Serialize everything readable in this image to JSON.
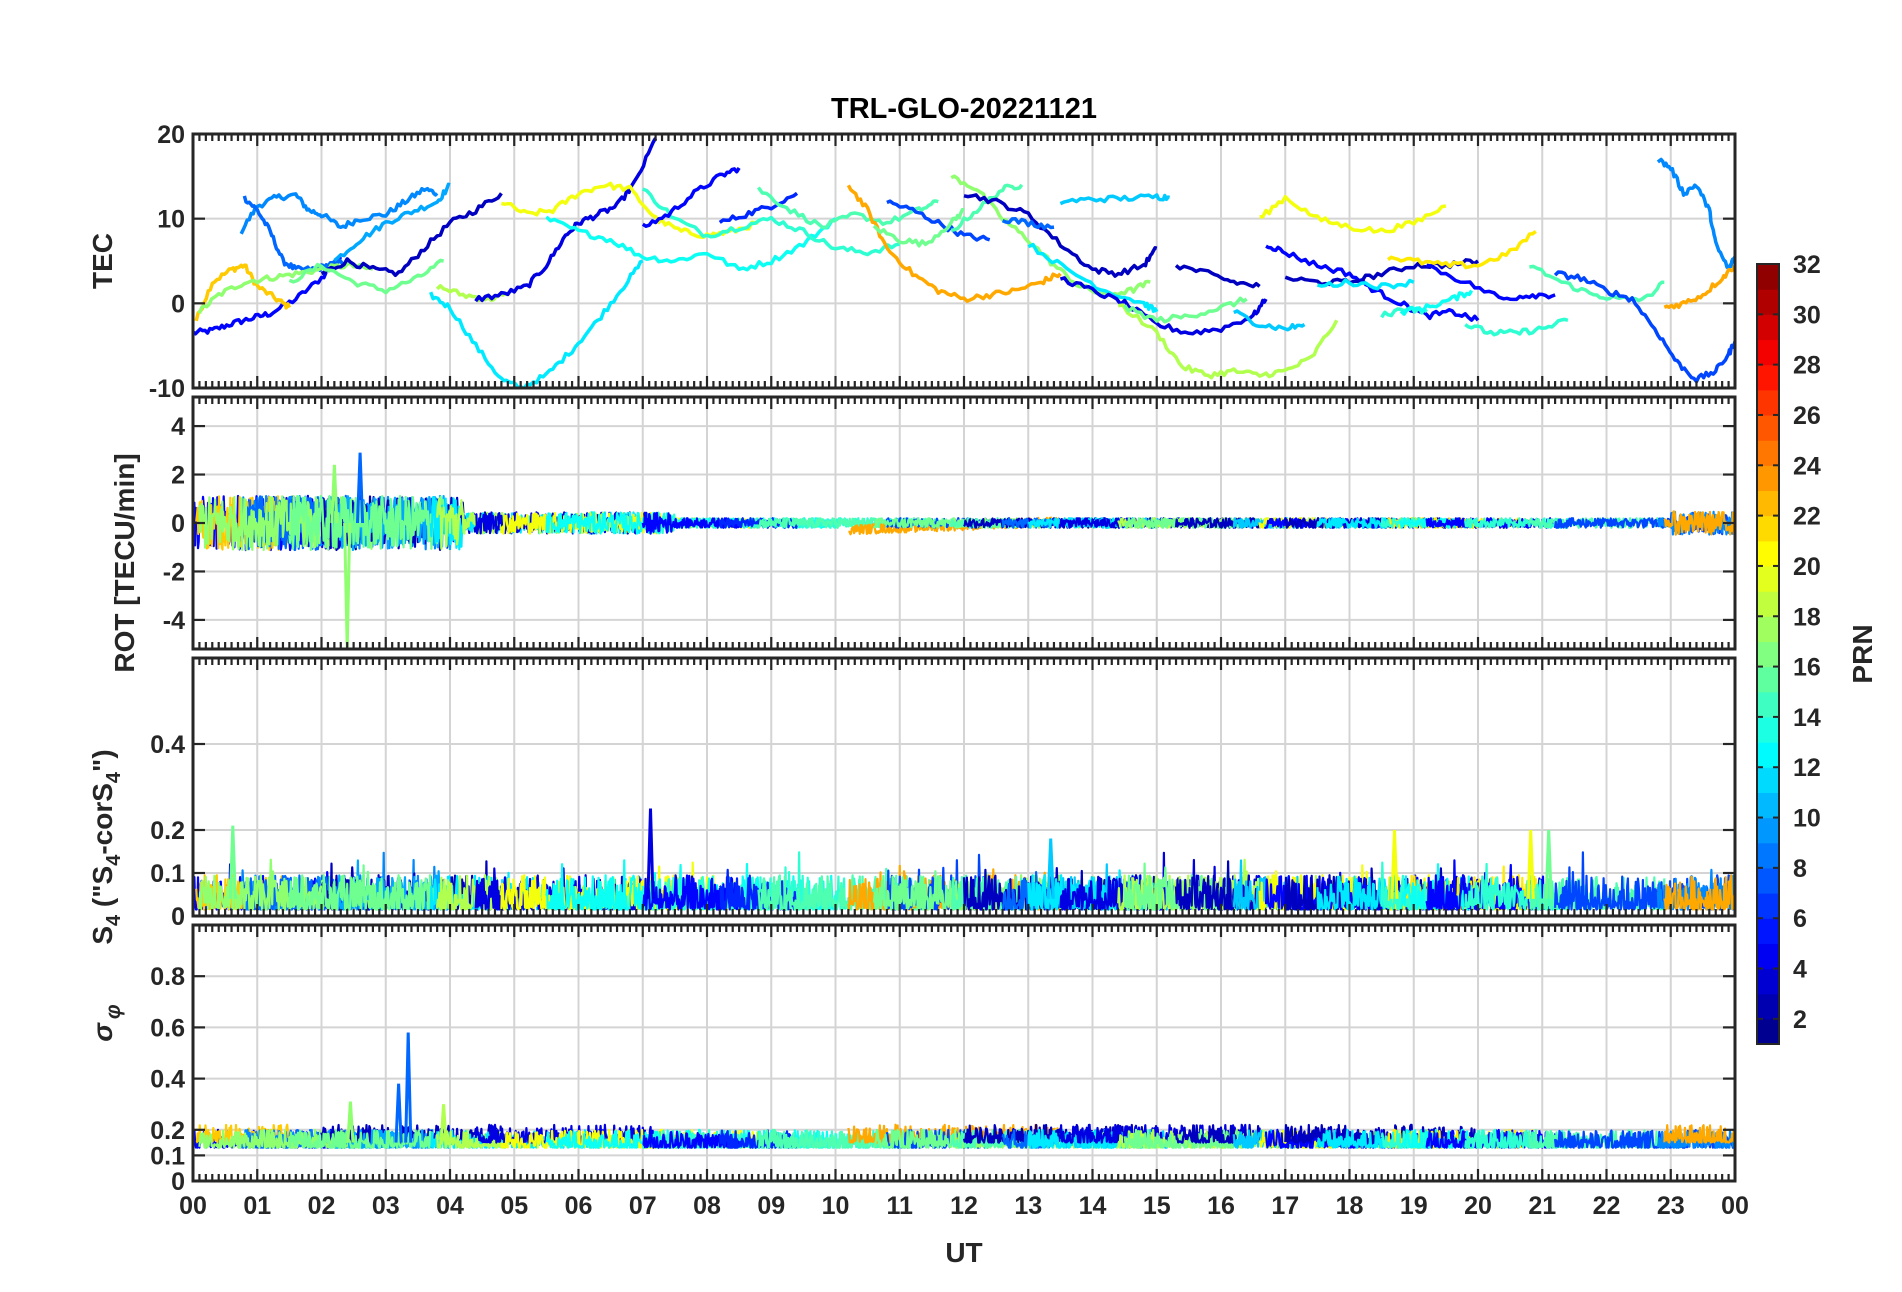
{
  "chart_data": [
    {
      "type": "line",
      "title": "TRL-GLO-20221121",
      "ylabel": "TEC",
      "xlabel": "",
      "xlim": [
        0,
        24
      ],
      "ylim": [
        -10,
        20
      ],
      "yticks": [
        -10,
        0,
        10,
        20
      ],
      "grid": true,
      "series": [
        {
          "prn": 5,
          "x": [
            0.0,
            0.3,
            0.6,
            0.9,
            1.2,
            1.6,
            2.0,
            2.3
          ],
          "y": [
            -3.5,
            -3.2,
            -2.4,
            -1.8,
            -1.2,
            0.5,
            3.0,
            5.5
          ]
        },
        {
          "prn": 22,
          "x": [
            0.05,
            0.3,
            0.6,
            0.8,
            1.0,
            1.3,
            1.5
          ],
          "y": [
            -2,
            2.5,
            4.0,
            4.5,
            2.0,
            0.5,
            -0.5
          ]
        },
        {
          "prn": 9,
          "x": [
            0.75,
            1.0,
            1.3,
            1.6,
            1.8,
            2.0,
            2.3,
            2.6,
            3.0,
            3.3,
            3.6,
            3.8
          ],
          "y": [
            8.5,
            11.5,
            12.5,
            12.8,
            11.0,
            10.5,
            9.0,
            10.0,
            10.5,
            12.0,
            13.5,
            13.0
          ]
        },
        {
          "prn": 8,
          "x": [
            0.8,
            1.0,
            1.2,
            1.4,
            1.6,
            1.9,
            2.1,
            2.4
          ],
          "y": [
            12.5,
            11.0,
            8.5,
            5.0,
            4.0,
            4.0,
            4.5,
            5.0
          ]
        },
        {
          "prn": 17,
          "x": [
            0.1,
            0.4,
            0.8,
            1.2,
            1.6,
            2.0,
            2.4,
            2.8
          ],
          "y": [
            -1.0,
            1.0,
            2.5,
            3.0,
            3.5,
            4.0,
            4.5,
            4.0
          ]
        },
        {
          "prn": 3,
          "x": [
            2.0,
            2.4,
            2.8,
            3.2,
            3.6,
            4.0,
            4.4,
            4.8
          ],
          "y": [
            3.5,
            5.0,
            4.0,
            3.5,
            6.5,
            9.5,
            11.0,
            13.0
          ]
        },
        {
          "prn": 10,
          "x": [
            2.2,
            2.6,
            3.0,
            3.4,
            3.8,
            4.0
          ],
          "y": [
            5.0,
            7.5,
            9.5,
            10.8,
            12.0,
            14.0
          ]
        },
        {
          "prn": 16,
          "x": [
            1.5,
            2.0,
            2.5,
            3.0,
            3.5,
            3.9
          ],
          "y": [
            2.5,
            4.5,
            2.5,
            1.5,
            3.0,
            5.0
          ]
        },
        {
          "prn": 12,
          "x": [
            3.7,
            4.0,
            4.4,
            4.8,
            5.1,
            5.5,
            5.9,
            6.3,
            6.7,
            7.0
          ],
          "y": [
            1.0,
            -0.5,
            -5.0,
            -9.0,
            -10.0,
            -8.5,
            -5.5,
            -2.0,
            2.0,
            5.0
          ]
        },
        {
          "prn": 18,
          "x": [
            3.8,
            4.2,
            4.6,
            4.9
          ],
          "y": [
            2.0,
            1.0,
            0.5,
            1.0
          ]
        },
        {
          "prn": 4,
          "x": [
            4.4,
            4.8,
            5.2,
            5.5,
            5.8,
            6.0,
            6.3,
            6.6,
            6.9,
            7.2
          ],
          "y": [
            0.5,
            1.0,
            2.0,
            4.5,
            8.0,
            9.5,
            10.5,
            11.5,
            14.5,
            19.5
          ]
        },
        {
          "prn": 20,
          "x": [
            4.8,
            5.2,
            5.6,
            6.0,
            6.4,
            6.8,
            7.2,
            7.6,
            8.0,
            8.4,
            8.8
          ],
          "y": [
            12.0,
            10.5,
            11.0,
            13.0,
            14.0,
            13.5,
            10.0,
            8.5,
            8.0,
            8.5,
            9.5
          ]
        },
        {
          "prn": 13,
          "x": [
            5.5,
            6.0,
            6.5,
            7.0,
            7.5,
            8.0,
            8.5,
            9.0,
            9.5,
            10.0
          ],
          "y": [
            10.0,
            8.5,
            7.5,
            5.5,
            5.0,
            6.0,
            4.0,
            5.0,
            7.0,
            10.0
          ]
        },
        {
          "prn": 14,
          "x": [
            7.0,
            7.5,
            8.0,
            8.5,
            9.0,
            9.5,
            10.0,
            10.5,
            11.0
          ],
          "y": [
            13.5,
            10.0,
            8.0,
            9.0,
            10.0,
            8.5,
            6.5,
            6.0,
            7.0
          ]
        },
        {
          "prn": 5,
          "x": [
            7.0,
            7.4,
            7.8,
            8.2,
            8.5
          ],
          "y": [
            9.0,
            10.5,
            13.0,
            15.0,
            16.0
          ]
        },
        {
          "prn": 6,
          "x": [
            8.2,
            8.6,
            9.0,
            9.4
          ],
          "y": [
            9.5,
            10.5,
            11.5,
            13.0
          ]
        },
        {
          "prn": 15,
          "x": [
            8.8,
            9.3,
            9.8,
            10.3,
            10.8,
            11.3,
            11.6
          ],
          "y": [
            13.5,
            11.0,
            9.0,
            10.5,
            9.5,
            11.0,
            12.0
          ]
        },
        {
          "prn": 23,
          "x": [
            10.2,
            10.5,
            10.8,
            11.2,
            11.6,
            12.0,
            12.4,
            12.8,
            13.2,
            13.5
          ],
          "y": [
            14.0,
            11.0,
            6.5,
            3.5,
            1.5,
            0.5,
            1.0,
            1.5,
            2.5,
            3.5
          ]
        },
        {
          "prn": 7,
          "x": [
            10.8,
            11.2,
            11.6,
            12.0,
            12.4
          ],
          "y": [
            12.0,
            11.0,
            9.5,
            8.0,
            7.5
          ]
        },
        {
          "prn": 16,
          "x": [
            10.6,
            11.0,
            11.4,
            11.8,
            12.0
          ],
          "y": [
            9.0,
            7.5,
            7.0,
            9.5,
            11.0
          ]
        },
        {
          "prn": 17,
          "x": [
            11.8,
            12.2,
            12.6,
            13.0,
            13.4,
            13.8,
            14.2,
            14.6,
            14.9
          ],
          "y": [
            15.0,
            13.5,
            10.0,
            7.5,
            4.5,
            2.0,
            1.0,
            1.5,
            2.5
          ]
        },
        {
          "prn": 15,
          "x": [
            11.8,
            12.2,
            12.6,
            12.9
          ],
          "y": [
            8.5,
            11.0,
            13.5,
            14.0
          ]
        },
        {
          "prn": 3,
          "x": [
            12.0,
            12.5,
            13.0,
            13.5,
            14.0,
            14.4,
            14.8,
            15.0
          ],
          "y": [
            13.0,
            12.0,
            10.5,
            7.0,
            4.0,
            3.5,
            4.5,
            6.5
          ]
        },
        {
          "prn": 11,
          "x": [
            13.5,
            14.0,
            14.5,
            15.0,
            15.2
          ],
          "y": [
            12.0,
            12.3,
            12.4,
            12.6,
            12.5
          ]
        },
        {
          "prn": 8,
          "x": [
            12.6,
            13.0,
            13.4
          ],
          "y": [
            10.0,
            9.5,
            9.0
          ]
        },
        {
          "prn": 12,
          "x": [
            13.0,
            13.6,
            14.2,
            14.8,
            15.0
          ],
          "y": [
            7.0,
            4.0,
            1.5,
            0.0,
            -1.0
          ]
        },
        {
          "prn": 4,
          "x": [
            13.5,
            14.0,
            14.5,
            15.0,
            15.5,
            16.0,
            16.5,
            16.7
          ],
          "y": [
            3.0,
            1.5,
            0.0,
            -2.5,
            -3.5,
            -3.0,
            -1.5,
            0.5
          ]
        },
        {
          "prn": 18,
          "x": [
            14.4,
            15.0,
            15.4,
            15.8,
            16.2,
            16.6,
            17.0,
            17.4,
            17.8
          ],
          "y": [
            0.0,
            -3.5,
            -7.5,
            -8.5,
            -8.0,
            -8.5,
            -8.0,
            -6.5,
            -2.0
          ]
        },
        {
          "prn": 16,
          "x": [
            14.5,
            15.0,
            15.5,
            16.0,
            16.4
          ],
          "y": [
            -0.5,
            -2.0,
            -1.5,
            -0.5,
            0.5
          ]
        },
        {
          "prn": 3,
          "x": [
            15.3,
            15.8,
            16.2,
            16.6
          ],
          "y": [
            4.5,
            3.5,
            2.5,
            2.0
          ]
        },
        {
          "prn": 11,
          "x": [
            16.2,
            16.6,
            17.0,
            17.3
          ],
          "y": [
            -1.0,
            -2.5,
            -3.0,
            -2.5
          ]
        },
        {
          "prn": 20,
          "x": [
            16.6,
            17.0,
            17.5,
            18.0,
            18.5,
            19.0,
            19.5
          ],
          "y": [
            10.0,
            12.5,
            10.0,
            9.0,
            8.5,
            9.5,
            11.5
          ]
        },
        {
          "prn": 5,
          "x": [
            16.7,
            17.0,
            17.5,
            18.0,
            18.4,
            18.8,
            19.2,
            19.6,
            20.0
          ],
          "y": [
            7.0,
            6.0,
            4.5,
            3.5,
            1.5,
            0.0,
            -1.5,
            -1.0,
            -2.0
          ]
        },
        {
          "prn": 3,
          "x": [
            17.0,
            17.5,
            18.0,
            18.5,
            19.0,
            19.5,
            20.0
          ],
          "y": [
            3.0,
            2.5,
            2.5,
            3.5,
            4.5,
            4.5,
            5.0
          ]
        },
        {
          "prn": 12,
          "x": [
            17.5,
            18.0,
            18.5,
            19.0
          ],
          "y": [
            2.0,
            2.5,
            2.0,
            2.5
          ]
        },
        {
          "prn": 21,
          "x": [
            18.6,
            19.0,
            19.5,
            20.0,
            20.5,
            20.9
          ],
          "y": [
            5.5,
            5.0,
            4.5,
            4.5,
            6.0,
            8.5
          ]
        },
        {
          "prn": 14,
          "x": [
            18.5,
            18.9,
            19.2
          ],
          "y": [
            -1.5,
            -0.5,
            -1.0
          ]
        },
        {
          "prn": 13,
          "x": [
            18.8,
            19.2,
            19.6,
            19.9
          ],
          "y": [
            -1.0,
            -0.5,
            0.5,
            1.5
          ]
        },
        {
          "prn": 5,
          "x": [
            19.2,
            19.8,
            20.4,
            20.8,
            21.2
          ],
          "y": [
            4.5,
            2.5,
            0.5,
            1.0,
            1.0
          ]
        },
        {
          "prn": 14,
          "x": [
            19.8,
            20.2,
            20.6,
            21.0,
            21.4
          ],
          "y": [
            -2.5,
            -3.5,
            -3.5,
            -3.0,
            -2.0
          ]
        },
        {
          "prn": 15,
          "x": [
            20.8,
            21.3,
            21.8,
            22.2,
            22.6,
            22.9
          ],
          "y": [
            4.5,
            2.5,
            1.0,
            0.5,
            0.5,
            2.5
          ]
        },
        {
          "prn": 7,
          "x": [
            21.2,
            21.6,
            22.0,
            22.4,
            22.8,
            23.1,
            23.4,
            23.7,
            23.9,
            24.0
          ],
          "y": [
            3.5,
            3.0,
            1.5,
            0.5,
            -3.5,
            -7.0,
            -9.0,
            -8.0,
            -6.0,
            -4.5
          ]
        },
        {
          "prn": 9,
          "x": [
            22.8,
            23.0,
            23.2,
            23.4,
            23.6,
            23.7,
            23.9,
            24.0
          ],
          "y": [
            17.0,
            16.0,
            13.0,
            14.0,
            11.0,
            7.0,
            4.0,
            5.5
          ]
        },
        {
          "prn": 23,
          "x": [
            22.9,
            23.2,
            23.5,
            23.8,
            24.0
          ],
          "y": [
            -0.5,
            0.0,
            1.0,
            3.0,
            4.5
          ]
        }
      ]
    },
    {
      "type": "line",
      "ylabel": "ROT [TECU/min]",
      "xlim": [
        0,
        24
      ],
      "ylim": [
        -5.2,
        5.2
      ],
      "yticks": [
        -4,
        -2,
        0,
        2,
        4
      ],
      "grid": true,
      "note_values": "Noisy rate of TEC; amplitude ~1-2 TECU/min between 00-04 UT, ~0.2-0.5 afterwards; isolated spikes: +2.9 at 02.6 UT, -5.2 at 02.4 UT",
      "spikes": [
        {
          "x": 2.4,
          "y": -5.2,
          "prn": 17
        },
        {
          "x": 2.6,
          "y": 2.9,
          "prn": 8
        },
        {
          "x": 2.2,
          "y": 2.4,
          "prn": 17
        }
      ]
    },
    {
      "type": "line",
      "ylabel": "S4 (\"S4-corS4\")",
      "xlim": [
        0,
        24
      ],
      "ylim": [
        0,
        0.6
      ],
      "yticks": [
        0,
        0.1,
        0.2,
        0.4
      ],
      "grid": true,
      "note_values": "Noisy S4 index mostly 0.02-0.1; peaks: 0.25 at 07.1 UT, 0.21 at 00.6 UT, 0.2 at 18.7 UT, 0.2 at 20.8 UT",
      "spikes": [
        {
          "x": 7.12,
          "y": 0.25,
          "prn": 4
        },
        {
          "x": 0.62,
          "y": 0.21,
          "prn": 16
        },
        {
          "x": 18.7,
          "y": 0.2,
          "prn": 20
        },
        {
          "x": 20.82,
          "y": 0.2,
          "prn": 20
        },
        {
          "x": 21.1,
          "y": 0.2,
          "prn": 16
        },
        {
          "x": 13.35,
          "y": 0.18,
          "prn": 11
        }
      ]
    },
    {
      "type": "line",
      "ylabel": "σ_φ",
      "xlabel": "UT",
      "xlim": [
        0,
        24
      ],
      "ylim": [
        0,
        1.0
      ],
      "yticks": [
        0,
        0.1,
        0.2,
        0.4,
        0.6,
        0.8
      ],
      "grid": true,
      "note_values": "Noisy phase scintillation index mostly 0.12-0.25; spike 0.58 at 03.35 UT, 0.38 at 03.2 UT",
      "spikes": [
        {
          "x": 3.35,
          "y": 0.58,
          "prn": 8
        },
        {
          "x": 3.2,
          "y": 0.38,
          "prn": 8
        },
        {
          "x": 2.45,
          "y": 0.31,
          "prn": 17
        },
        {
          "x": 3.9,
          "y": 0.3,
          "prn": 18
        }
      ]
    }
  ],
  "figure": {
    "title": "TRL-GLO-20221121",
    "xlabel": "UT",
    "xticklabels": [
      "00",
      "01",
      "02",
      "03",
      "04",
      "05",
      "06",
      "07",
      "08",
      "09",
      "10",
      "11",
      "12",
      "13",
      "14",
      "15",
      "16",
      "17",
      "18",
      "19",
      "20",
      "21",
      "22",
      "23",
      "00"
    ],
    "panel_labels": [
      "TEC",
      "ROT [TECU/min]",
      "S4 (\"S4-corS4\")",
      "σφ"
    ],
    "panel_ytick_labels": [
      [
        "-10",
        "0",
        "10",
        "20"
      ],
      [
        "-4",
        "-2",
        "0",
        "2",
        "4"
      ],
      [
        "0",
        "0.1",
        "0.2",
        "0.4"
      ],
      [
        "0",
        "0.1",
        "0.2",
        "0.4",
        "0.6",
        "0.8"
      ]
    ]
  },
  "colorbar": {
    "label": "PRN",
    "range": [
      1,
      32
    ],
    "colormap": "jet",
    "ticks": [
      2,
      4,
      6,
      8,
      10,
      12,
      14,
      16,
      18,
      20,
      22,
      24,
      26,
      28,
      30,
      32
    ],
    "tick_labels": [
      "2",
      "4",
      "6",
      "8",
      "10",
      "12",
      "14",
      "16",
      "18",
      "20",
      "22",
      "24",
      "26",
      "28",
      "30",
      "32"
    ]
  }
}
